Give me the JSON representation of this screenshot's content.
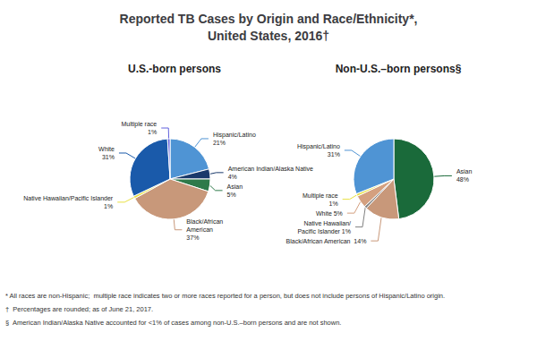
{
  "title": "Reported TB Cases by Origin and Race/Ethnicity*,\nUnited States, 2016†",
  "chart_data": [
    {
      "type": "pie",
      "title": "U.S.-born persons",
      "values": [
        21,
        4,
        5,
        37,
        1,
        31,
        1
      ],
      "colors": [
        "#4f94d4",
        "#1a3a6b",
        "#2e7a4a",
        "#c8987a",
        "#e8e040",
        "#1a5aaa",
        "#6060dd"
      ],
      "data_labels": true,
      "value_labels": [
        "Hispanic/Latino\n21%",
        "American Indian/Alaska Native\n4%",
        "Asian\n5%",
        "Black/African\nAmerican\n37%",
        "Native Hawaiian/Pacific Islander\n1%",
        "White\n31%",
        "Multiple race\n1%"
      ]
    },
    {
      "type": "pie",
      "title": "Non-U.S.–born persons§",
      "values": [
        48,
        14,
        1,
        5,
        1,
        31
      ],
      "colors": [
        "#1a6a3a",
        "#c8987a",
        "#808080",
        "#d4a080",
        "#e8e040",
        "#4f94d4"
      ],
      "data_labels": true,
      "value_labels": [
        "Asian\n48%",
        "Black/African American  14%",
        "Native Hawaiian/\nPacific Islander 1%",
        "White 5%",
        "Multiple race\n1%",
        "Hispanic/Latino\n31%"
      ]
    }
  ],
  "annotations": [
    "* All races are non-Hispanic;  multiple race indicates two or more races reported for a person, but does not include persons of Hispanic/Latino origin.",
    "†  Percentages are rounded; as of June 21, 2017.",
    "§  American Indian/Alaska Native accounted for <1% of cases among non-U.S.–born persons and are not shown."
  ]
}
